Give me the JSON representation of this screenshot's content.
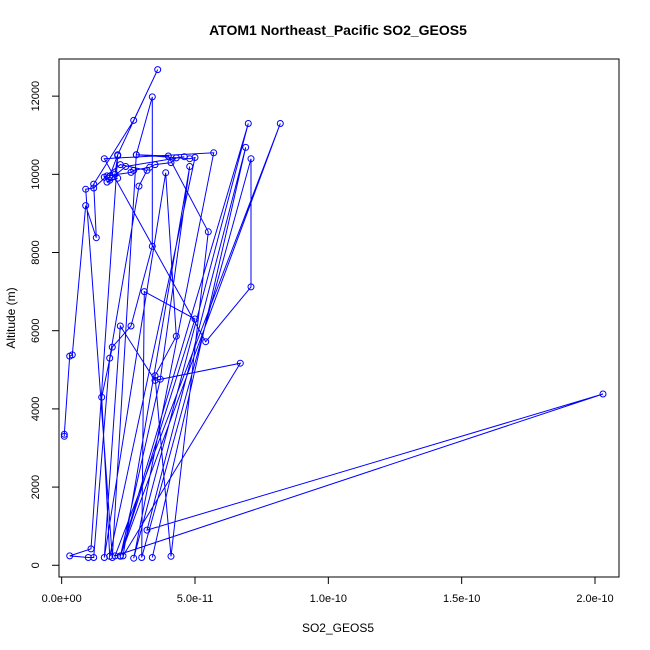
{
  "chart_data": {
    "type": "line",
    "title": "ATOM1 Northeast_Pacific SO2_GEOS5",
    "xlabel": "SO2_GEOS5",
    "ylabel": "Altitude (m)",
    "xlim": [
      -1e-12,
      2.09e-10
    ],
    "ylim": [
      -300,
      12950
    ],
    "xticks": [
      0,
      5e-11,
      1e-10,
      1.5e-10,
      2e-10
    ],
    "xtick_labels": [
      "0.0e+00",
      "5.0e-11",
      "1.0e-10",
      "1.5e-10",
      "2.0e-10"
    ],
    "yticks": [
      0,
      2000,
      4000,
      6000,
      8000,
      10000,
      12000
    ],
    "ytick_labels": [
      "0",
      "2000",
      "4000",
      "6000",
      "8000",
      "10000",
      "12000"
    ],
    "grid": false,
    "colors": {
      "series": "#0000ff",
      "axis": "#000000"
    },
    "series": [
      {
        "marker": "open-circle",
        "x": [
          1e-12,
          1e-12,
          3e-12,
          4e-12,
          9e-12,
          1.3e-11,
          1.2e-11,
          2.7e-11,
          3.6e-11,
          2.1e-11,
          1.8e-11,
          2e-11,
          2.1e-11,
          1.1e-11,
          3e-12,
          1e-11,
          1.2e-11,
          1.8e-11,
          2.9e-11,
          3.2e-11,
          2.2e-11,
          1.6e-11,
          1.8e-11,
          2.1e-11,
          1.7e-11,
          2.4e-11,
          4.6e-11,
          4.3e-11,
          4.1e-11,
          3.5e-11,
          3.3e-11,
          2.7e-11,
          2.6e-11,
          1.7e-11,
          1.2e-11,
          9e-12,
          1.9e-11,
          2.8e-11,
          4.8e-11,
          5e-11,
          1.8e-11,
          1.5e-11,
          1.9e-11,
          2.6e-11,
          3.4e-11,
          3.4e-11,
          2.8e-11,
          4e-11,
          5.5e-11,
          4.1e-11,
          3.5e-11,
          4.3e-11,
          3.9e-11,
          1.6e-11,
          2.2e-11,
          3.5e-11,
          6.7e-11,
          2.3e-11,
          4.8e-11,
          3.7e-11,
          2.2e-11,
          5e-11,
          3.1e-11,
          3e-11,
          7.1e-11,
          7.1e-11,
          5.4e-11,
          1.6e-11,
          5.7e-11,
          2.7e-11,
          7e-11,
          2.2e-11,
          8.2e-11,
          2e-11,
          2.03e-10,
          3.2e-11,
          6.9e-11,
          3.4e-11
        ],
        "y": [
          3300,
          3350,
          5350,
          5380,
          9200,
          8380,
          9750,
          11380,
          12680,
          10500,
          9950,
          10000,
          10480,
          420,
          240,
          200,
          200,
          5300,
          9700,
          10100,
          10250,
          9930,
          9850,
          9900,
          9800,
          10200,
          10450,
          10420,
          10300,
          10250,
          10180,
          10100,
          10050,
          9960,
          9650,
          9620,
          200,
          10500,
          10400,
          10430,
          230,
          4300,
          5580,
          6120,
          8160,
          11980,
          10500,
          10470,
          8530,
          230,
          4850,
          5860,
          10040,
          200,
          6120,
          4730,
          5170,
          240,
          10200,
          4760,
          230,
          6300,
          7000,
          200,
          10400,
          7120,
          5720,
          10400,
          10550,
          180,
          11300,
          240,
          11300,
          240,
          4380,
          900,
          10690,
          200
        ]
      }
    ]
  }
}
